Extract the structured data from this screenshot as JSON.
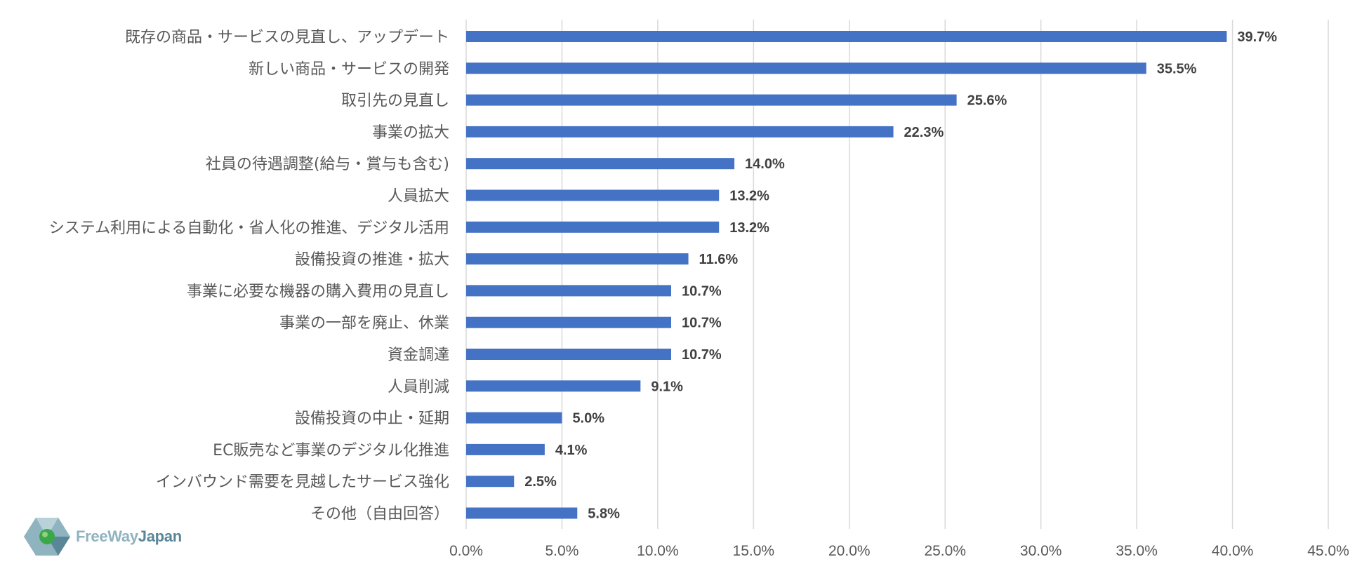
{
  "chart_data": {
    "type": "bar",
    "orientation": "horizontal",
    "categories": [
      "既存の商品・サービスの見直し、アップデート",
      "新しい商品・サービスの開発",
      "取引先の見直し",
      "事業の拡大",
      "社員の待遇調整(給与・賞与も含む)",
      "人員拡大",
      "システム利用による自動化・省人化の推進、デジタル活用",
      "設備投資の推進・拡大",
      "事業に必要な機器の購入費用の見直し",
      "事業の一部を廃止、休業",
      "資金調達",
      "人員削減",
      "設備投資の中止・延期",
      "EC販売など事業のデジタル化推進",
      "インバウンド需要を見越したサービス強化",
      "その他（自由回答）"
    ],
    "values": [
      39.7,
      35.5,
      25.6,
      22.3,
      14.0,
      13.2,
      13.2,
      11.6,
      10.7,
      10.7,
      10.7,
      9.1,
      5.0,
      4.1,
      2.5,
      5.8
    ],
    "value_labels": [
      "39.7%",
      "35.5%",
      "25.6%",
      "22.3%",
      "14.0%",
      "13.2%",
      "13.2%",
      "11.6%",
      "10.7%",
      "10.7%",
      "10.7%",
      "9.1%",
      "5.0%",
      "4.1%",
      "2.5%",
      "5.8%"
    ],
    "xlim": [
      0,
      45
    ],
    "x_ticks": [
      0,
      5,
      10,
      15,
      20,
      25,
      30,
      35,
      40,
      45
    ],
    "x_tick_labels": [
      "0.0%",
      "5.0%",
      "10.0%",
      "15.0%",
      "20.0%",
      "25.0%",
      "30.0%",
      "35.0%",
      "40.0%",
      "45.0%"
    ],
    "title": "",
    "xlabel": "",
    "ylabel": "",
    "grid": "vertical",
    "legend": "none",
    "bar_color": "#4472c4",
    "grid_color": "#d9d9d9"
  },
  "logo": {
    "text_part1": "FreeWay",
    "text_part2": "Japan",
    "colors": [
      "#8fb3bf",
      "#5a8798",
      "#3aa84a"
    ]
  }
}
